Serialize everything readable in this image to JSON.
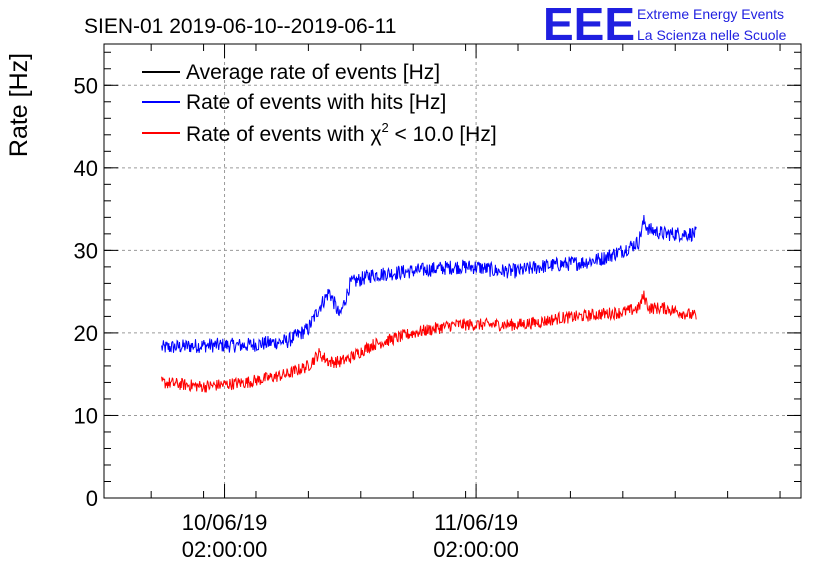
{
  "chart_data": {
    "type": "line",
    "title": "SIEN-01 2019-06-10--2019-06-11",
    "ylabel": "Rate [Hz]",
    "xlabel": "",
    "ylim": [
      0,
      55
    ],
    "y_ticks": [
      "0",
      "10",
      "20",
      "30",
      "40",
      "50"
    ],
    "x_ticks": [
      {
        "date": "10/06/19",
        "time": "02:00:00",
        "value": "2019-06-10 02:00:00"
      },
      {
        "date": "11/06/19",
        "time": "02:00:00",
        "value": "2019-06-11 02:00:00"
      }
    ],
    "grid": true,
    "legend_position": "top-left",
    "x_unit": "hours relative to 2019-06-10 00:00",
    "series": [
      {
        "name": "Average rate of events [Hz]",
        "color": "#000000",
        "values": []
      },
      {
        "name": "Rate of events with hits [Hz]",
        "color": "#0000ff",
        "x": [
          -4.0,
          0.0,
          4.0,
          8.0,
          10.0,
          11.0,
          12.0,
          13.0,
          14.0,
          16.0,
          20.0,
          24.0,
          26.0,
          28.0,
          30.0,
          32.0,
          34.0,
          36.0,
          38.0,
          40.0,
          41.5,
          42.0,
          42.5,
          44.0,
          47.0
        ],
        "values": [
          18.2,
          18.5,
          18.5,
          19.0,
          20.5,
          23.0,
          25.0,
          22.0,
          26.0,
          27.0,
          27.5,
          28.0,
          28.0,
          27.5,
          27.5,
          28.0,
          28.3,
          28.5,
          29.0,
          30.0,
          31.0,
          33.5,
          32.5,
          32.0,
          32.0
        ]
      },
      {
        "name": "Rate of events with χ² < 10.0 [Hz]",
        "color": "#ff0000",
        "legend_label_prefix": "Rate of events with ",
        "legend_chi": "χ",
        "legend_sup": "2",
        "legend_label_suffix": " < 10.0 [Hz]",
        "x": [
          -4.0,
          0.0,
          4.0,
          8.0,
          10.0,
          11.0,
          12.0,
          13.0,
          14.0,
          16.0,
          20.0,
          24.0,
          26.0,
          28.0,
          30.0,
          32.0,
          34.0,
          36.0,
          38.0,
          40.0,
          41.5,
          42.0,
          42.5,
          44.0,
          47.0
        ],
        "values": [
          14.0,
          13.5,
          14.0,
          15.0,
          16.0,
          17.5,
          16.5,
          16.5,
          17.0,
          18.5,
          20.0,
          21.0,
          21.0,
          21.0,
          21.0,
          21.3,
          21.8,
          22.0,
          22.3,
          22.5,
          23.0,
          24.5,
          23.0,
          23.0,
          22.0
        ]
      }
    ]
  },
  "logo": {
    "mark": "EEE",
    "line1": "Extreme Energy Events",
    "line2": "La Scienza nelle Scuole"
  }
}
